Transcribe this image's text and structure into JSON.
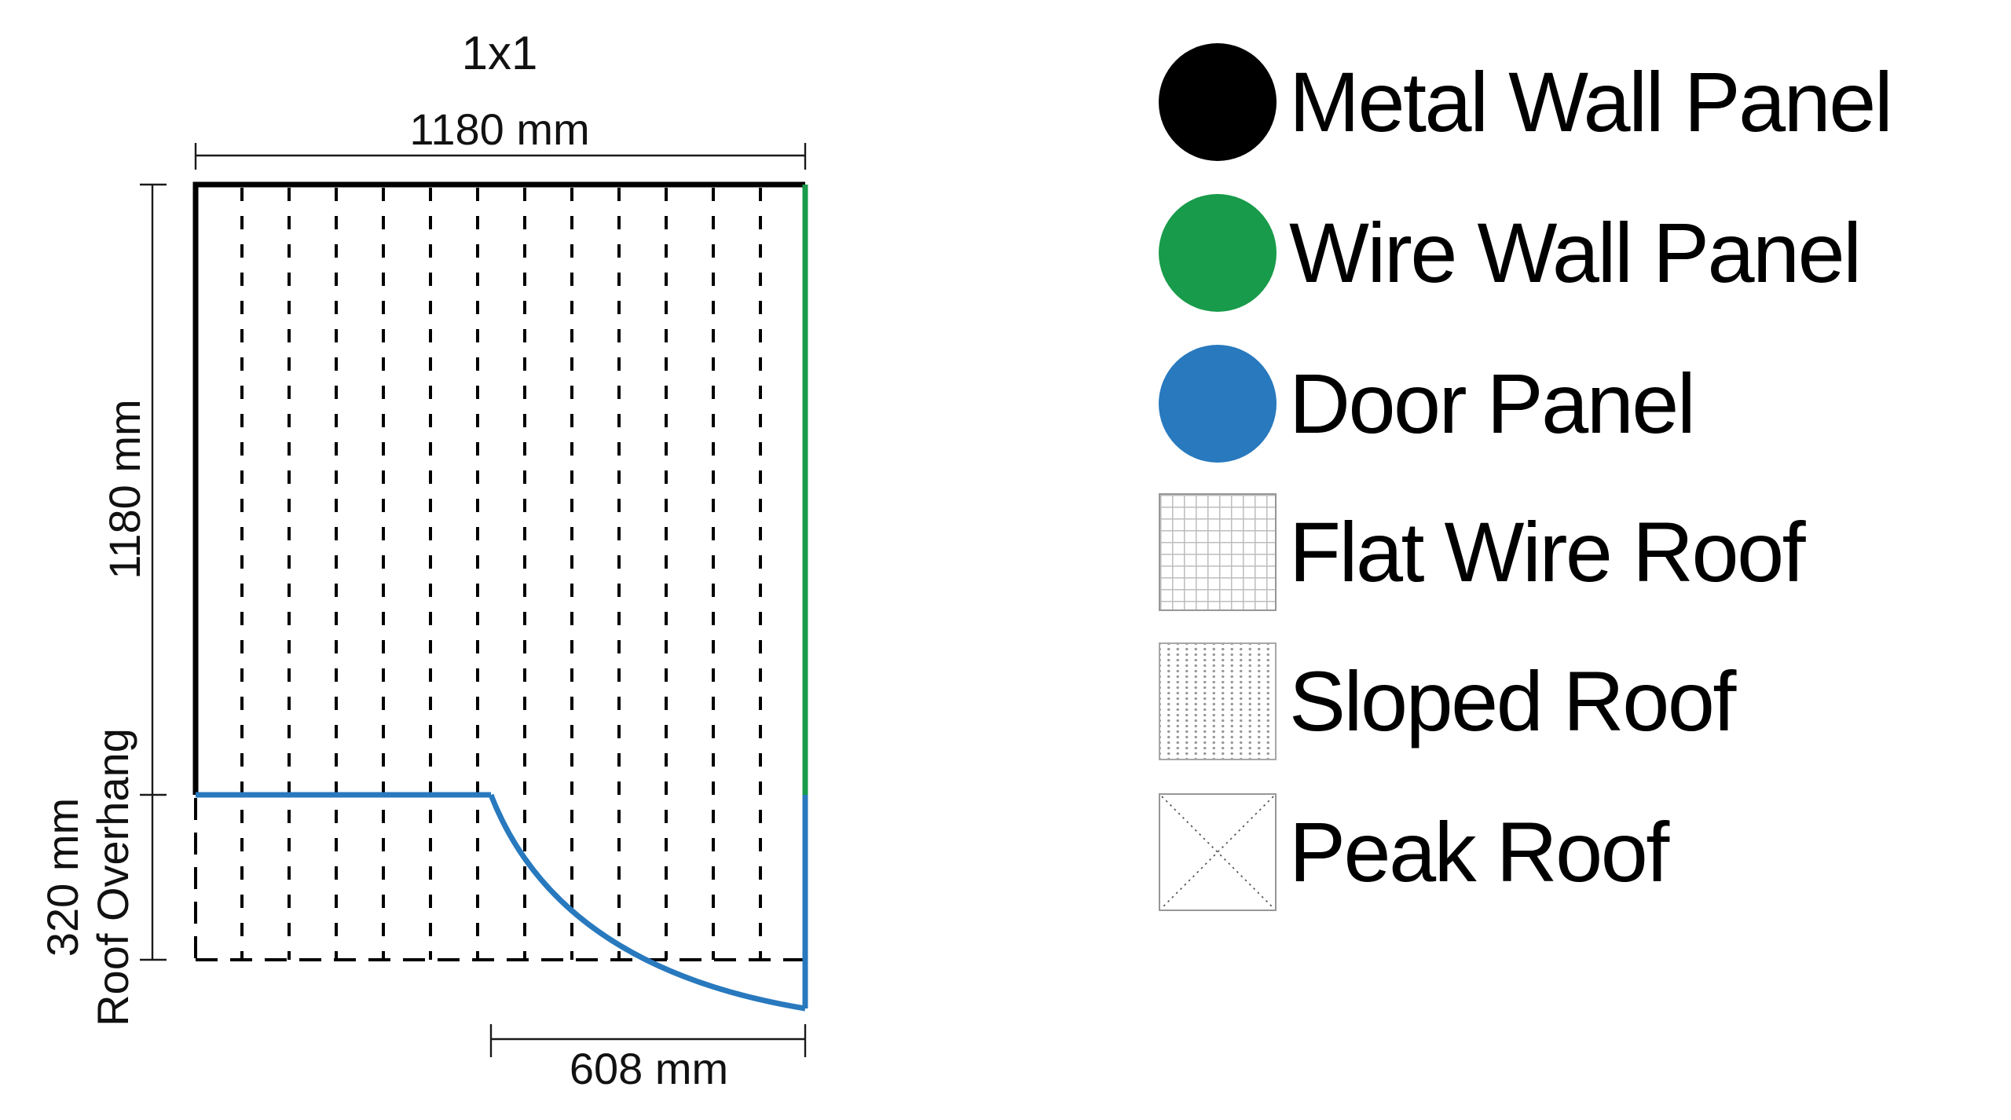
{
  "title": "1x1",
  "dimensions": {
    "width_label": "1180 mm",
    "height_label": "1180 mm",
    "overhang_label_line1": "320 mm",
    "overhang_label_line2": "Roof Overhang",
    "door_width_label": "608 mm"
  },
  "colors": {
    "metal_wall": "#000000",
    "wire_wall": "#189b4a",
    "door": "#2879be"
  },
  "legend": {
    "items": [
      {
        "label": "Metal Wall Panel",
        "swatch": "filled-circle",
        "color_key": "metal_wall"
      },
      {
        "label": "Wire Wall Panel",
        "swatch": "filled-circle",
        "color_key": "wire_wall"
      },
      {
        "label": "Door Panel",
        "swatch": "filled-circle",
        "color_key": "door"
      },
      {
        "label": "Flat Wire Roof",
        "swatch": "fine-grid-square"
      },
      {
        "label": "Sloped Roof",
        "swatch": "dotted-columns-square"
      },
      {
        "label": "Peak Roof",
        "swatch": "diagonal-cross-square"
      }
    ]
  }
}
